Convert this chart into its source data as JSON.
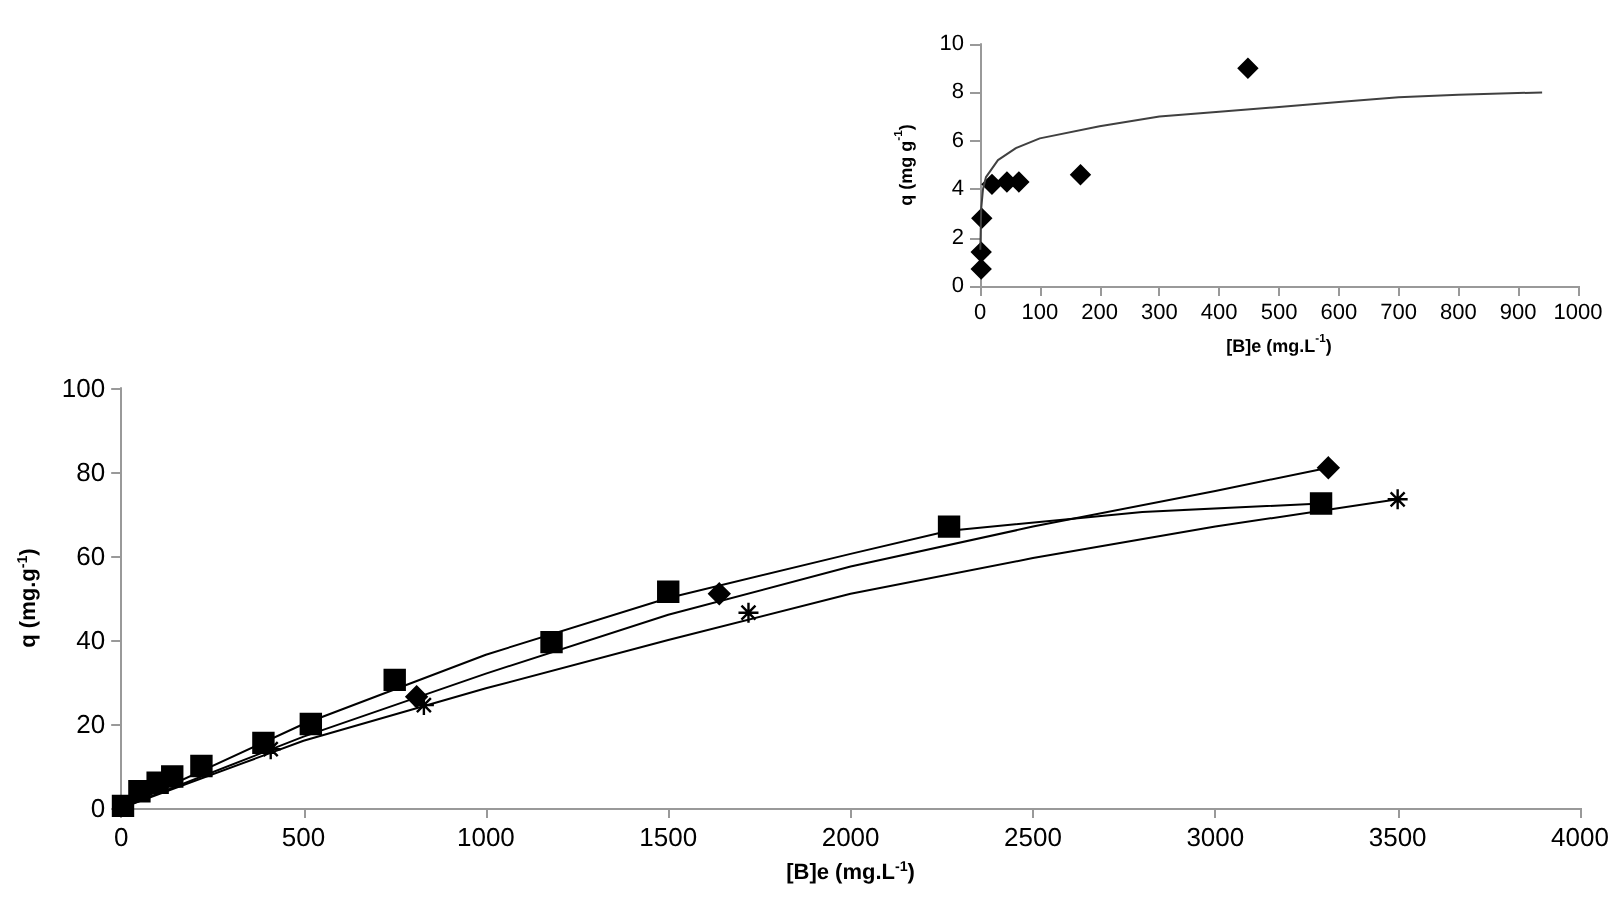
{
  "chart_data": [
    {
      "type": "scatter",
      "xlabel": "[B]e (mg.L$^{-1}$)",
      "ylabel": "q (mg g$^{-1}$)",
      "xlim": [
        0,
        1000
      ],
      "xticks": [
        0,
        100,
        200,
        300,
        400,
        500,
        600,
        700,
        800,
        900,
        1000
      ],
      "ylim": [
        0,
        10
      ],
      "yticks": [
        0,
        2,
        4,
        6,
        8,
        10
      ],
      "grid": false,
      "series": [
        {
          "marker": "diamond",
          "color": "#000000",
          "x": [
            2,
            2,
            3,
            20,
            45,
            65,
            168,
            448
          ],
          "values": [
            0.7,
            1.4,
            2.8,
            4.2,
            4.3,
            4.3,
            4.6,
            9
          ]
        },
        {
          "type": "line",
          "marker": "none",
          "color": "#404040",
          "x": [
            0.5,
            2,
            5,
            10,
            30,
            60,
            100,
            200,
            300,
            400,
            500,
            600,
            700,
            800,
            940
          ],
          "values": [
            1.5,
            3.2,
            4,
            4.5,
            5.2,
            5.7,
            6.1,
            6.6,
            7,
            7.2,
            7.4,
            7.6,
            7.8,
            7.9,
            8
          ]
        }
      ]
    },
    {
      "type": "scatter",
      "xlabel": "[B]e (mg.L$^{-1}$)",
      "ylabel": "q (mg.g$^{-1}$)",
      "xlim": [
        0,
        4000
      ],
      "xticks": [
        0,
        500,
        1000,
        1500,
        2000,
        2500,
        3000,
        3500,
        4000
      ],
      "ylim": [
        0,
        100
      ],
      "yticks": [
        0,
        20,
        40,
        60,
        80,
        100
      ],
      "grid": false,
      "series": [
        {
          "type": "line",
          "marker": "none",
          "color": "#000000",
          "x": [
            0,
            500,
            1000,
            1500,
            2000,
            2500,
            3000,
            3310
          ],
          "values": [
            0,
            17,
            32,
            46,
            57.5,
            67,
            75.5,
            81
          ]
        },
        {
          "type": "line",
          "marker": "none",
          "color": "#000000",
          "x": [
            0,
            500,
            1000,
            1500,
            2000,
            2270,
            2800,
            3290
          ],
          "values": [
            0,
            20,
            36.5,
            50,
            60.5,
            66,
            70.5,
            72.5
          ]
        },
        {
          "type": "line",
          "marker": "none",
          "color": "#000000",
          "x": [
            0,
            500,
            1000,
            1500,
            2000,
            2500,
            3000,
            3500
          ],
          "values": [
            0,
            16,
            28.5,
            40,
            51,
            59.5,
            67,
            73.5
          ]
        },
        {
          "marker": "diamond",
          "color": "#000000",
          "x": [
            810,
            1640,
            3310
          ],
          "values": [
            26.5,
            51,
            81
          ]
        },
        {
          "marker": "square",
          "color": "#000000",
          "x": [
            5,
            50,
            100,
            140,
            220,
            390,
            520,
            750,
            1180,
            1500,
            2270,
            3290
          ],
          "values": [
            0.5,
            4,
            6,
            7.5,
            10,
            15.5,
            20,
            30.5,
            39.5,
            51.5,
            67,
            72.5
          ]
        },
        {
          "marker": "cross",
          "color": "#000000",
          "x": [
            410,
            830,
            1720,
            3500
          ],
          "values": [
            14,
            24.5,
            46.5,
            73.5
          ]
        }
      ]
    }
  ]
}
